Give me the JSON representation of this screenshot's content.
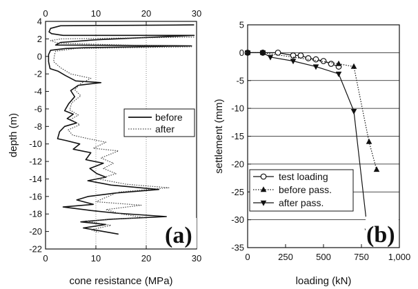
{
  "chart_data": [
    {
      "panel": "a",
      "panel_label": "(a)",
      "type": "line",
      "xlabel": "cone resistance (MPa)",
      "ylabel": "depth (m)",
      "xlim": [
        0,
        30
      ],
      "ylim": [
        -22,
        4
      ],
      "xticks": [
        0,
        10,
        20,
        30
      ],
      "yticks": [
        4,
        2,
        0,
        -2,
        -4,
        -6,
        -8,
        -10,
        -12,
        -14,
        -16,
        -18,
        -20,
        -22
      ],
      "grid": "vertical",
      "x_axis_top_and_bottom": true,
      "legend_position": "center-right",
      "series": [
        {
          "name": "before",
          "style": "solid",
          "color": "#111111",
          "points": [
            [
              29.5,
              3.6
            ],
            [
              3.0,
              3.5
            ],
            [
              1.0,
              3.2
            ],
            [
              0.7,
              2.8
            ],
            [
              1.2,
              2.6
            ],
            [
              3.5,
              2.4
            ],
            [
              29.5,
              2.4
            ],
            [
              10.0,
              1.9
            ],
            [
              3.0,
              1.6
            ],
            [
              2.0,
              1.3
            ],
            [
              29.0,
              1.2
            ],
            [
              8.0,
              1.0
            ],
            [
              4.0,
              0.9
            ],
            [
              1.0,
              0.7
            ],
            [
              0.6,
              0.2
            ],
            [
              0.6,
              -0.6
            ],
            [
              0.9,
              -1.4
            ],
            [
              2.5,
              -1.7
            ],
            [
              4.0,
              -2.2
            ],
            [
              6.0,
              -2.8
            ],
            [
              11.0,
              -3.0
            ],
            [
              6.5,
              -3.3
            ],
            [
              5.0,
              -3.9
            ],
            [
              5.8,
              -4.6
            ],
            [
              4.6,
              -5.4
            ],
            [
              3.8,
              -6.2
            ],
            [
              5.5,
              -6.6
            ],
            [
              4.3,
              -7.1
            ],
            [
              6.2,
              -7.6
            ],
            [
              3.8,
              -8.0
            ],
            [
              2.8,
              -8.6
            ],
            [
              2.4,
              -9.4
            ],
            [
              4.0,
              -9.6
            ],
            [
              6.8,
              -10.0
            ],
            [
              5.5,
              -10.6
            ],
            [
              9.0,
              -11.0
            ],
            [
              8.0,
              -11.8
            ],
            [
              11.5,
              -12.2
            ],
            [
              8.8,
              -12.8
            ],
            [
              10.2,
              -13.4
            ],
            [
              12.0,
              -13.8
            ],
            [
              8.4,
              -14.2
            ],
            [
              11.2,
              -14.5
            ],
            [
              13.0,
              -14.7
            ],
            [
              22.5,
              -15.2
            ],
            [
              14.0,
              -15.6
            ],
            [
              8.5,
              -16.0
            ],
            [
              6.2,
              -16.4
            ],
            [
              9.5,
              -16.9
            ],
            [
              3.5,
              -17.2
            ],
            [
              9.0,
              -17.6
            ],
            [
              14.0,
              -17.9
            ],
            [
              24.0,
              -18.3
            ],
            [
              13.0,
              -18.6
            ],
            [
              7.0,
              -18.9
            ],
            [
              12.0,
              -19.2
            ],
            [
              7.5,
              -19.6
            ],
            [
              10.5,
              -19.9
            ],
            [
              14.5,
              -20.3
            ]
          ]
        },
        {
          "name": "after",
          "style": "dotted",
          "color": "#444444",
          "points": [
            [
              29.5,
              2.2
            ],
            [
              3.0,
              2.0
            ],
            [
              1.0,
              1.8
            ],
            [
              2.5,
              1.5
            ],
            [
              29.0,
              1.1
            ],
            [
              6.0,
              0.9
            ],
            [
              2.0,
              0.6
            ],
            [
              1.8,
              0.2
            ],
            [
              1.6,
              -0.6
            ],
            [
              3.0,
              -1.3
            ],
            [
              5.0,
              -2.0
            ],
            [
              9.0,
              -2.5
            ],
            [
              7.0,
              -3.1
            ],
            [
              5.8,
              -3.8
            ],
            [
              7.0,
              -4.5
            ],
            [
              5.2,
              -5.3
            ],
            [
              4.8,
              -6.1
            ],
            [
              6.5,
              -6.7
            ],
            [
              5.0,
              -7.2
            ],
            [
              6.8,
              -7.8
            ],
            [
              4.5,
              -8.4
            ],
            [
              5.4,
              -9.0
            ],
            [
              8.5,
              -9.4
            ],
            [
              12.0,
              -9.8
            ],
            [
              9.5,
              -10.5
            ],
            [
              14.5,
              -10.8
            ],
            [
              11.0,
              -11.6
            ],
            [
              13.5,
              -12.2
            ],
            [
              11.5,
              -12.8
            ],
            [
              14.0,
              -13.4
            ],
            [
              10.5,
              -14.0
            ],
            [
              16.0,
              -14.6
            ],
            [
              24.5,
              -15.0
            ],
            [
              14.5,
              -15.5
            ],
            [
              12.0,
              -16.1
            ],
            [
              10.0,
              -16.6
            ],
            [
              19.0,
              -17.0
            ],
            [
              12.0,
              -17.5
            ],
            [
              15.0,
              -18.0
            ],
            [
              19.5,
              -18.4
            ],
            [
              8.0,
              -18.8
            ],
            [
              13.0,
              -19.3
            ],
            [
              9.0,
              -19.8
            ],
            [
              10.5,
              -20.1
            ]
          ]
        }
      ]
    },
    {
      "panel": "b",
      "panel_label": "(b)",
      "type": "line",
      "xlabel": "loading (kN)",
      "ylabel": "settlement (mm)",
      "xlim": [
        0,
        1000
      ],
      "ylim": [
        -35,
        5
      ],
      "xticks": [
        0,
        250,
        500,
        750,
        1000
      ],
      "xtick_labels": [
        "0",
        "250",
        "500",
        "750",
        "1,000"
      ],
      "yticks": [
        5,
        0,
        -5,
        -10,
        -15,
        -20,
        -25,
        -30,
        -35
      ],
      "grid": "horizontal",
      "legend_position": "lower-left",
      "series": [
        {
          "name": "test loading",
          "marker": "open-circle",
          "line": "solid",
          "x": [
            0,
            100,
            200,
            300,
            350,
            400,
            450,
            500,
            550,
            600
          ],
          "y": [
            0,
            0,
            0,
            -0.5,
            -0.5,
            -1.0,
            -1.2,
            -1.5,
            -2.0,
            -2.5
          ]
        },
        {
          "name": "before pass.",
          "marker": "filled-triangle-up",
          "line": "dotted",
          "x": [
            0,
            100,
            600,
            700,
            800,
            850
          ],
          "y": [
            0,
            0,
            -2.0,
            -2.5,
            -16.0,
            -21.0
          ]
        },
        {
          "name": "after pass.",
          "marker": "filled-triangle-down",
          "line": "solid",
          "x": [
            0,
            100,
            150,
            300,
            450,
            600,
            700,
            790
          ],
          "y": [
            0,
            0,
            -0.8,
            -1.5,
            -2.5,
            -3.8,
            -10.5,
            -32.0
          ]
        }
      ]
    }
  ]
}
